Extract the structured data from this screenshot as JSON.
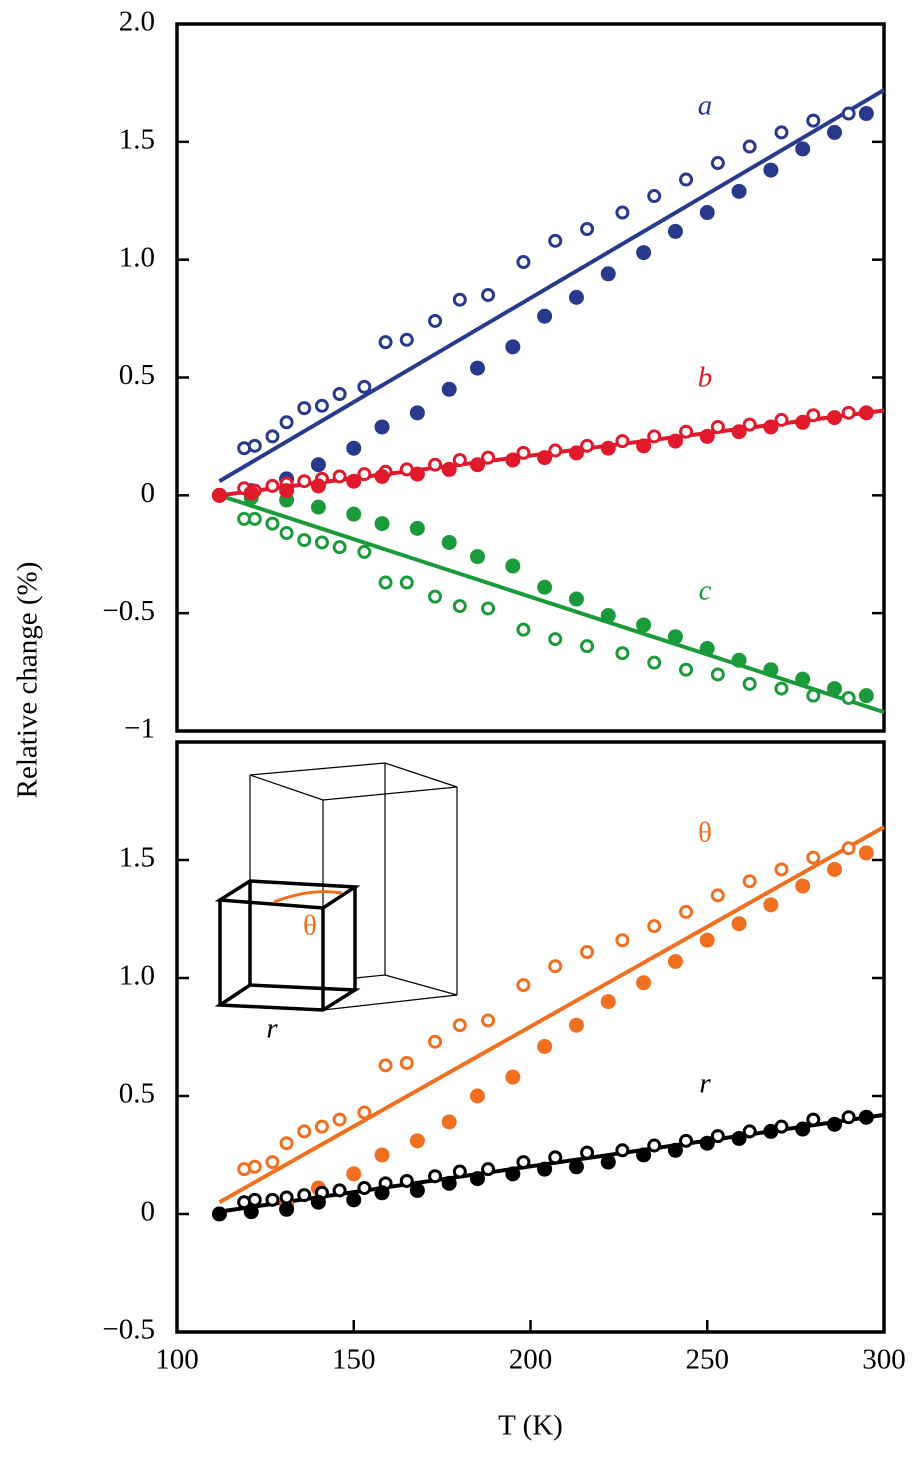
{
  "chart_data": [
    {
      "type": "scatter",
      "ylabel": "Relative change (%)",
      "xlim": [
        100,
        300
      ],
      "ylim": [
        -1,
        2
      ],
      "yticks": [
        {
          "value": -1,
          "label": "−1"
        },
        {
          "value": -0.5,
          "label": "−0.5"
        },
        0,
        0.5,
        {
          "value": 1,
          "label": "1.0"
        },
        1.5,
        {
          "value": 2,
          "label": "2.0"
        }
      ],
      "annotations": [
        {
          "text": "a",
          "color": "#283a8c"
        },
        {
          "text": "b",
          "color": "#e0192b"
        },
        {
          "text": "c",
          "color": "#1a9a3a"
        }
      ],
      "series": [
        {
          "marker": "line",
          "color": "#283a8c",
          "x": [
            112,
            300
          ],
          "values": [
            0.06,
            1.72
          ]
        },
        {
          "marker": "line",
          "color": "#e0192b",
          "x": [
            112,
            300
          ],
          "values": [
            0,
            0.36
          ]
        },
        {
          "marker": "line",
          "color": "#1a9a3a",
          "x": [
            112,
            300
          ],
          "values": [
            0,
            -0.92
          ]
        },
        {
          "marker": "open",
          "color": "#283a8c",
          "x": [
            119,
            122,
            127,
            131,
            136,
            141,
            146,
            153,
            159,
            165,
            173,
            180,
            188,
            198,
            207,
            216,
            226,
            235,
            244,
            253,
            262,
            271,
            280,
            290
          ],
          "values": [
            0.2,
            0.21,
            0.25,
            0.31,
            0.37,
            0.38,
            0.43,
            0.46,
            0.65,
            0.66,
            0.74,
            0.83,
            0.85,
            0.99,
            1.08,
            1.13,
            1.2,
            1.27,
            1.34,
            1.41,
            1.48,
            1.54,
            1.59,
            1.62
          ]
        },
        {
          "marker": "filled",
          "color": "#283a8c",
          "x": [
            112,
            121,
            131,
            140,
            150,
            158,
            168,
            177,
            185,
            195,
            204,
            213,
            222,
            232,
            241,
            250,
            259,
            268,
            277,
            286,
            295
          ],
          "values": [
            0,
            0.02,
            0.07,
            0.13,
            0.2,
            0.29,
            0.35,
            0.45,
            0.54,
            0.63,
            0.76,
            0.84,
            0.94,
            1.03,
            1.12,
            1.2,
            1.29,
            1.38,
            1.47,
            1.54,
            1.62
          ]
        },
        {
          "marker": "open",
          "color": "#1a9a3a",
          "x": [
            119,
            122,
            127,
            131,
            136,
            141,
            146,
            153,
            159,
            165,
            173,
            180,
            188,
            198,
            207,
            216,
            226,
            235,
            244,
            253,
            262,
            271,
            280,
            290
          ],
          "values": [
            -0.1,
            -0.1,
            -0.12,
            -0.16,
            -0.19,
            -0.2,
            -0.22,
            -0.24,
            -0.37,
            -0.37,
            -0.43,
            -0.47,
            -0.48,
            -0.57,
            -0.61,
            -0.64,
            -0.67,
            -0.71,
            -0.74,
            -0.76,
            -0.8,
            -0.82,
            -0.85,
            -0.86
          ]
        },
        {
          "marker": "filled",
          "color": "#1a9a3a",
          "x": [
            112,
            121,
            131,
            140,
            150,
            158,
            168,
            177,
            185,
            195,
            204,
            213,
            222,
            232,
            241,
            250,
            259,
            268,
            277,
            286,
            295
          ],
          "values": [
            0,
            -0.01,
            -0.02,
            -0.05,
            -0.08,
            -0.12,
            -0.14,
            -0.2,
            -0.26,
            -0.3,
            -0.39,
            -0.44,
            -0.51,
            -0.55,
            -0.6,
            -0.65,
            -0.7,
            -0.74,
            -0.78,
            -0.82,
            -0.85
          ]
        },
        {
          "marker": "open",
          "color": "#e0192b",
          "x": [
            119,
            122,
            127,
            131,
            136,
            141,
            146,
            153,
            159,
            165,
            173,
            180,
            188,
            198,
            207,
            216,
            226,
            235,
            244,
            253,
            262,
            271,
            280,
            290
          ],
          "values": [
            0.03,
            0.02,
            0.04,
            0.05,
            0.06,
            0.07,
            0.08,
            0.09,
            0.1,
            0.11,
            0.13,
            0.15,
            0.16,
            0.18,
            0.19,
            0.21,
            0.23,
            0.25,
            0.27,
            0.29,
            0.3,
            0.32,
            0.34,
            0.35
          ]
        },
        {
          "marker": "filled",
          "color": "#e0192b",
          "x": [
            112,
            121,
            131,
            140,
            150,
            158,
            168,
            177,
            185,
            195,
            204,
            213,
            222,
            232,
            241,
            250,
            259,
            268,
            277,
            286,
            295
          ],
          "values": [
            0,
            0.01,
            0.02,
            0.04,
            0.06,
            0.08,
            0.09,
            0.11,
            0.13,
            0.15,
            0.16,
            0.18,
            0.2,
            0.21,
            0.23,
            0.25,
            0.27,
            0.29,
            0.31,
            0.33,
            0.35
          ]
        }
      ]
    },
    {
      "type": "scatter",
      "xlabel": "T (K)",
      "xlim": [
        100,
        300
      ],
      "xticks": [
        100,
        150,
        200,
        250,
        300
      ],
      "ylim": [
        -0.5,
        2
      ],
      "yticks": [
        {
          "value": -0.5,
          "label": "−0.5"
        },
        0,
        0.5,
        {
          "value": 1,
          "label": "1.0"
        },
        1.5
      ],
      "annotations": [
        {
          "text": "θ",
          "color": "#f07020"
        },
        {
          "text": "r",
          "color": "#000000"
        },
        {
          "text": "θ",
          "color": "#f07020"
        },
        {
          "text": "r",
          "color": "#000000"
        }
      ],
      "series": [
        {
          "marker": "line",
          "color": "#f07020",
          "x": [
            112,
            300
          ],
          "values": [
            0.05,
            1.64
          ]
        },
        {
          "marker": "line",
          "color": "#000000",
          "x": [
            112,
            300
          ],
          "values": [
            0.01,
            0.42
          ]
        },
        {
          "marker": "open",
          "color": "#f07020",
          "x": [
            119,
            122,
            127,
            131,
            136,
            141,
            146,
            153,
            159,
            165,
            173,
            180,
            188,
            198,
            207,
            216,
            226,
            235,
            244,
            253,
            262,
            271,
            280,
            290
          ],
          "values": [
            0.19,
            0.2,
            0.22,
            0.3,
            0.35,
            0.37,
            0.4,
            0.43,
            0.63,
            0.64,
            0.73,
            0.8,
            0.82,
            0.97,
            1.05,
            1.11,
            1.16,
            1.22,
            1.28,
            1.35,
            1.41,
            1.46,
            1.51,
            1.55
          ]
        },
        {
          "marker": "filled",
          "color": "#f07020",
          "x": [
            112,
            121,
            131,
            140,
            150,
            158,
            168,
            177,
            185,
            195,
            204,
            213,
            222,
            232,
            241,
            250,
            259,
            268,
            277,
            286,
            295
          ],
          "values": [
            0,
            0.01,
            0.04,
            0.11,
            0.17,
            0.25,
            0.31,
            0.39,
            0.5,
            0.58,
            0.71,
            0.8,
            0.9,
            0.98,
            1.07,
            1.16,
            1.23,
            1.31,
            1.39,
            1.46,
            1.53
          ]
        },
        {
          "marker": "open",
          "color": "#000000",
          "x": [
            119,
            122,
            127,
            131,
            136,
            141,
            146,
            153,
            159,
            165,
            173,
            180,
            188,
            198,
            207,
            216,
            226,
            235,
            244,
            253,
            262,
            271,
            280,
            290
          ],
          "values": [
            0.05,
            0.06,
            0.06,
            0.07,
            0.08,
            0.09,
            0.1,
            0.11,
            0.13,
            0.14,
            0.16,
            0.18,
            0.19,
            0.22,
            0.24,
            0.26,
            0.27,
            0.29,
            0.31,
            0.33,
            0.35,
            0.37,
            0.4,
            0.41
          ]
        },
        {
          "marker": "filled",
          "color": "#000000",
          "x": [
            112,
            121,
            131,
            140,
            150,
            158,
            168,
            177,
            185,
            195,
            204,
            213,
            222,
            232,
            241,
            250,
            259,
            268,
            277,
            286,
            295
          ],
          "values": [
            0,
            0.01,
            0.02,
            0.05,
            0.06,
            0.09,
            0.1,
            0.13,
            0.15,
            0.17,
            0.19,
            0.2,
            0.22,
            0.25,
            0.27,
            0.3,
            0.32,
            0.35,
            0.36,
            0.38,
            0.41
          ]
        }
      ]
    }
  ]
}
